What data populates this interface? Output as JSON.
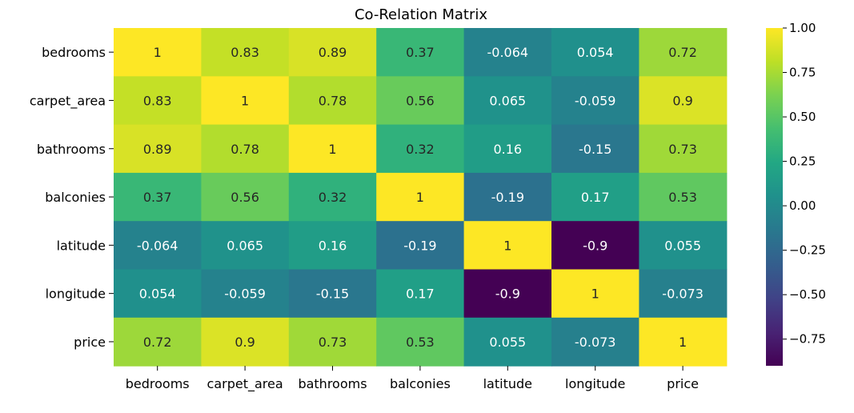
{
  "chart_data": {
    "type": "heatmap",
    "title": "Co-Relation Matrix",
    "colormap": "viridis",
    "row_labels": [
      "bedrooms",
      "carpet_area",
      "bathrooms",
      "balconies",
      "latitude",
      "longitude",
      "price"
    ],
    "col_labels": [
      "bedrooms",
      "carpet_area",
      "bathrooms",
      "balconies",
      "latitude",
      "longitude",
      "price"
    ],
    "values": [
      [
        1,
        0.83,
        0.89,
        0.37,
        -0.064,
        0.054,
        0.72
      ],
      [
        0.83,
        1,
        0.78,
        0.56,
        0.065,
        -0.059,
        0.9
      ],
      [
        0.89,
        0.78,
        1,
        0.32,
        0.16,
        -0.15,
        0.73
      ],
      [
        0.37,
        0.56,
        0.32,
        1,
        -0.19,
        0.17,
        0.53
      ],
      [
        -0.064,
        0.065,
        0.16,
        -0.19,
        1,
        -0.9,
        0.055
      ],
      [
        0.054,
        -0.059,
        -0.15,
        0.17,
        -0.9,
        1,
        -0.073
      ],
      [
        0.72,
        0.9,
        0.73,
        0.53,
        0.055,
        -0.073,
        1
      ]
    ],
    "annotations": [
      [
        "1",
        "0.83",
        "0.89",
        "0.37",
        "-0.064",
        "0.054",
        "0.72"
      ],
      [
        "0.83",
        "1",
        "0.78",
        "0.56",
        "0.065",
        "-0.059",
        "0.9"
      ],
      [
        "0.89",
        "0.78",
        "1",
        "0.32",
        "0.16",
        "-0.15",
        "0.73"
      ],
      [
        "0.37",
        "0.56",
        "0.32",
        "1",
        "-0.19",
        "0.17",
        "0.53"
      ],
      [
        "-0.064",
        "0.065",
        "0.16",
        "-0.19",
        "1",
        "-0.9",
        "0.055"
      ],
      [
        "0.054",
        "-0.059",
        "-0.15",
        "0.17",
        "-0.9",
        "1",
        "-0.073"
      ],
      [
        "0.72",
        "0.9",
        "0.73",
        "0.53",
        "0.055",
        "-0.073",
        "1"
      ]
    ],
    "vmin": -0.9,
    "vmax": 1.0,
    "colorbar_ticks": [
      1.0,
      0.75,
      0.5,
      0.25,
      0.0,
      -0.25,
      -0.5,
      -0.75
    ],
    "colorbar_tick_labels": [
      "1.00",
      "0.75",
      "0.50",
      "0.25",
      "0.00",
      "−0.25",
      "−0.50",
      "−0.75"
    ],
    "xlabel": "",
    "ylabel": ""
  }
}
